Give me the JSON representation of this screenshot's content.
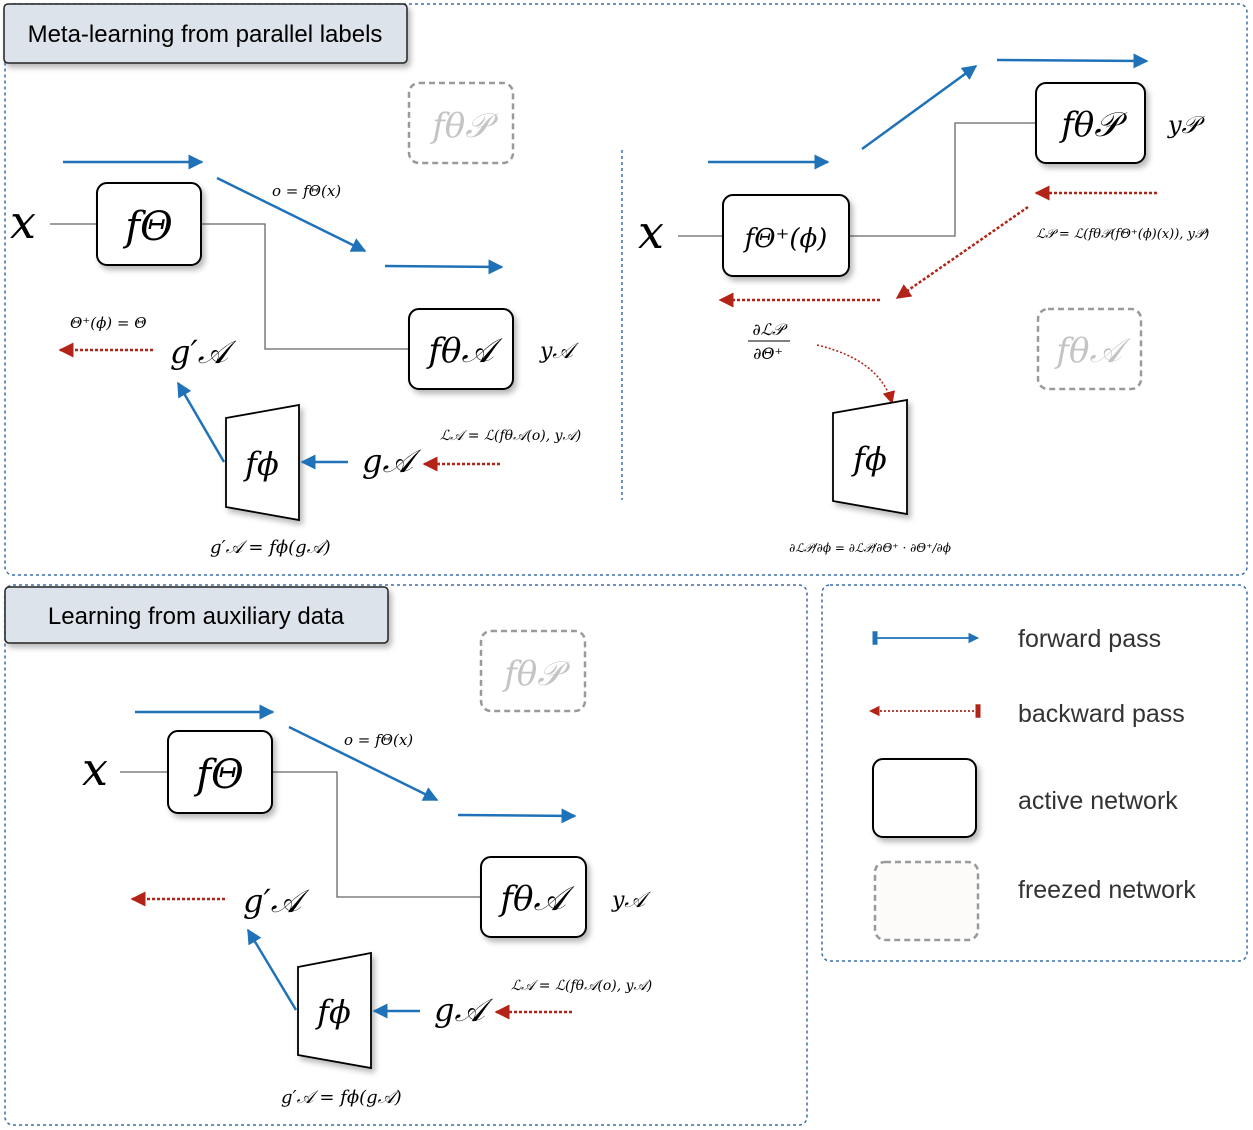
{
  "panels": {
    "meta": {
      "title": "Meta-learning from parallel labels"
    },
    "aux": {
      "title": "Learning from auxiliary data"
    }
  },
  "legend": {
    "forward": "forward pass",
    "backward": "backward pass",
    "active": "active network",
    "frozen": "freezed network"
  },
  "colors": {
    "forward": "#1f72b8",
    "backward": "#b22418",
    "frame": "#3a6fa8",
    "line": "#666666",
    "frozen_border": "#9a9a9a",
    "frozen_text": "#c4c4c4"
  },
  "math": {
    "x": "x",
    "f_theta": "fΘ",
    "f_theta_A": "fθ𝒜",
    "f_theta_P": "fθ𝒫",
    "f_theta_plus_phi": "fΘ⁺(ϕ)",
    "f_phi": "fϕ",
    "y_A": "y𝒜",
    "y_P": "y𝒫",
    "g_A": "g𝒜",
    "g_prime_A": "g′𝒜",
    "o_eq": "o = fΘ(x)",
    "loss_A": "ℒ𝒜 = ℒ(fθ𝒜(o), y𝒜)",
    "loss_P": "ℒ𝒫 = ℒ(fθ𝒫(fΘ⁺(ϕ)(x)), y𝒫)",
    "g_prime_eq": "g′𝒜 = fϕ(g𝒜)",
    "theta_plus_eq": "Θ⁺(ϕ) = Θ",
    "dL_dTheta_num": "∂ℒ𝒫",
    "dL_dTheta_den": "∂Θ⁺",
    "chain_rule": "∂ℒ𝒫/∂ϕ = ∂ℒ𝒫/∂Θ⁺ · ∂Θ⁺/∂ϕ"
  }
}
